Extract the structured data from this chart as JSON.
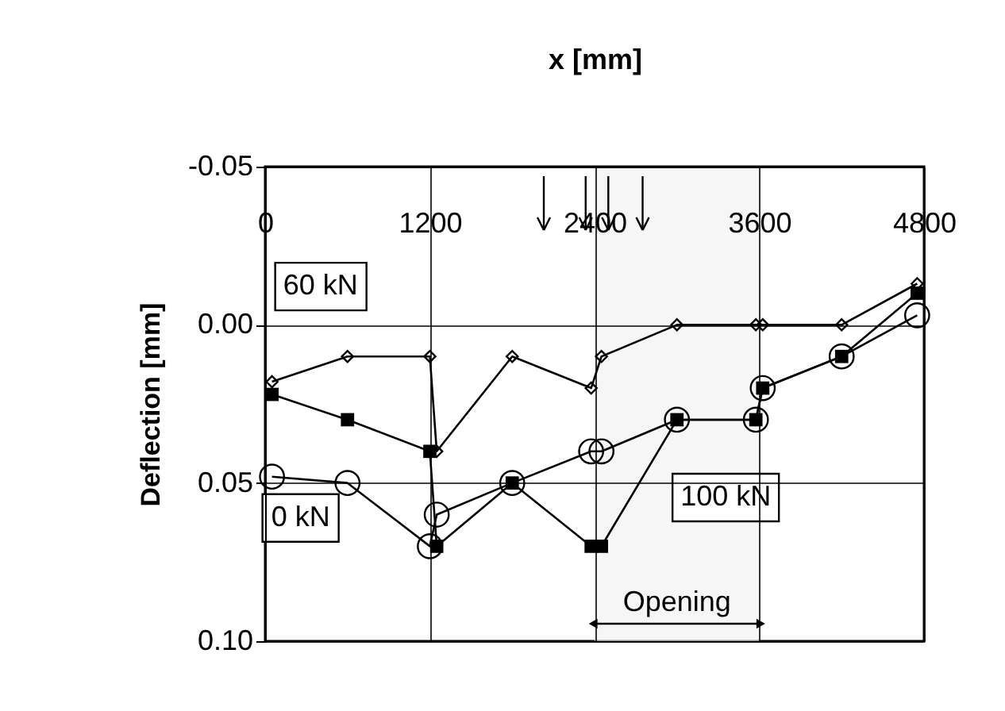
{
  "chart_data": {
    "type": "line",
    "xlabel": "x [mm]",
    "ylabel": "Deflection [mm]",
    "xlim": [
      0,
      4800
    ],
    "xticks": [
      0,
      1200,
      2400,
      3600,
      4800
    ],
    "ylim": [
      0.1,
      -0.05
    ],
    "yticks": [
      {
        "value": -0.05,
        "label": "-0.05"
      },
      {
        "value": 0,
        "label": "0.00"
      },
      {
        "value": 0.05,
        "label": "0.05"
      },
      {
        "value": 0.1,
        "label": "0.10"
      }
    ],
    "grid": true,
    "legend": false,
    "series": [
      {
        "name": "60 kN",
        "color": "#000000",
        "marker": "diamond",
        "x": [
          50,
          600,
          1200,
          1250,
          1800,
          2375,
          2450,
          3000,
          3575,
          3625,
          4200,
          4750
        ],
        "values": [
          0.018,
          0.01,
          0.01,
          0.04,
          0.01,
          0.02,
          0.01,
          0,
          0,
          0,
          0,
          -0.013
        ]
      },
      {
        "name": "100 kN",
        "color": "#000000",
        "marker": "square",
        "x": [
          50,
          600,
          1200,
          1250,
          1800,
          2375,
          2450,
          3000,
          3575,
          3625,
          4200,
          4750
        ],
        "values": [
          0.022,
          0.03,
          0.04,
          0.07,
          0.05,
          0.07,
          0.07,
          0.03,
          0.03,
          0.02,
          0.01,
          -0.01
        ]
      },
      {
        "name": "0 kN",
        "color": "#000000",
        "marker": "circle",
        "x": [
          50,
          600,
          1200,
          1250,
          1800,
          2375,
          2450,
          3000,
          3575,
          3625,
          4200,
          4750
        ],
        "values": [
          0.048,
          0.05,
          0.07,
          0.06,
          0.05,
          0.04,
          0.04,
          0.03,
          0.03,
          0.02,
          0.01,
          -0.003
        ]
      }
    ],
    "ref_lines": [
      {
        "axis": "x",
        "value": 2030,
        "label": null
      },
      {
        "axis": "x",
        "value": 2335,
        "label": null
      },
      {
        "axis": "x",
        "value": 2500,
        "label": null
      },
      {
        "axis": "x",
        "value": 2750,
        "label": null
      }
    ],
    "bands": [
      {
        "axis": "x",
        "from": 2400,
        "to": 3600,
        "label": "Opening",
        "color": "#f0f0f0"
      }
    ]
  }
}
